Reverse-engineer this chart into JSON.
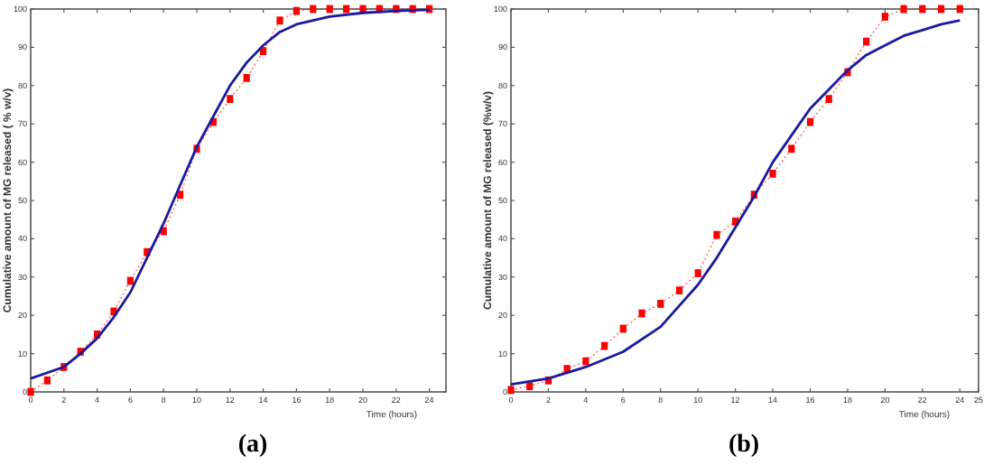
{
  "chart_data": [
    {
      "type": "line",
      "title": "(a)",
      "xlabel": "Time (hours)",
      "ylabel": "Cumulative amount of MG released ( % w/v)",
      "xlim": [
        0,
        25
      ],
      "xticks": [
        0,
        2,
        4,
        6,
        8,
        10,
        12,
        14,
        16,
        18,
        20,
        22,
        24
      ],
      "ylim": [
        0,
        100
      ],
      "yticks": [
        0,
        10,
        20,
        30,
        40,
        50,
        60,
        70,
        80,
        90,
        100
      ],
      "grid": false,
      "series": [
        {
          "color": "#ff0000",
          "marker": "square",
          "line_style": "dotted",
          "x": [
            0,
            1,
            2,
            3,
            4,
            5,
            6,
            7,
            8,
            9,
            10,
            11,
            12,
            13,
            14,
            15,
            16,
            17,
            18,
            19,
            20,
            21,
            22,
            23,
            24
          ],
          "values": [
            0,
            3,
            6.5,
            10.5,
            15,
            21,
            29,
            36.5,
            42,
            51.5,
            63.5,
            70.5,
            76.5,
            82,
            89,
            97,
            99.5,
            100,
            100,
            100,
            100,
            100,
            100,
            100,
            100
          ]
        },
        {
          "color": "#1a1aa0",
          "marker": "none",
          "line_style": "solid",
          "x": [
            0,
            1,
            2,
            3,
            4,
            5,
            6,
            7,
            8,
            9,
            10,
            11,
            12,
            13,
            14,
            15,
            16,
            18,
            20,
            22,
            24
          ],
          "values": [
            3.5,
            5,
            6.5,
            10,
            14,
            19.5,
            26,
            35,
            44,
            54,
            64,
            72,
            80,
            86,
            90.5,
            94,
            96,
            98,
            99,
            99.5,
            99.8
          ]
        }
      ]
    },
    {
      "type": "line",
      "title": "(b)",
      "xlabel": "Time (hours)",
      "ylabel": "Cumulative amount of MG released (%w/v)",
      "xlim": [
        0,
        25
      ],
      "xticks": [
        0,
        2,
        4,
        6,
        8,
        10,
        12,
        14,
        16,
        18,
        20,
        22,
        24,
        25
      ],
      "ylim": [
        0,
        100
      ],
      "yticks": [
        0,
        10,
        20,
        30,
        40,
        50,
        60,
        70,
        80,
        90,
        100
      ],
      "grid": false,
      "series": [
        {
          "color": "#ff0000",
          "marker": "square",
          "line_style": "dotted",
          "x": [
            0,
            1,
            2,
            3,
            4,
            5,
            6,
            7,
            8,
            9,
            10,
            11,
            12,
            13,
            14,
            15,
            16,
            17,
            18,
            19,
            20,
            21,
            22,
            23,
            24
          ],
          "values": [
            0.5,
            1.5,
            3,
            6,
            8,
            12,
            16.5,
            20.5,
            23,
            26.5,
            31,
            41,
            44.5,
            51.5,
            57,
            63.5,
            70.5,
            76.5,
            83.5,
            91.5,
            98,
            100,
            100,
            100,
            100
          ]
        },
        {
          "color": "#1a1aa0",
          "marker": "none",
          "line_style": "solid",
          "x": [
            0,
            2,
            4,
            6,
            8,
            10,
            11,
            12,
            13,
            14,
            15,
            16,
            17,
            18,
            19,
            20,
            21,
            22,
            23,
            24
          ],
          "values": [
            2,
            3.5,
            6.5,
            10.5,
            17,
            28,
            35,
            43,
            51,
            60,
            67,
            74,
            79,
            84,
            88,
            90.5,
            93,
            94.5,
            96,
            97
          ]
        }
      ]
    }
  ]
}
